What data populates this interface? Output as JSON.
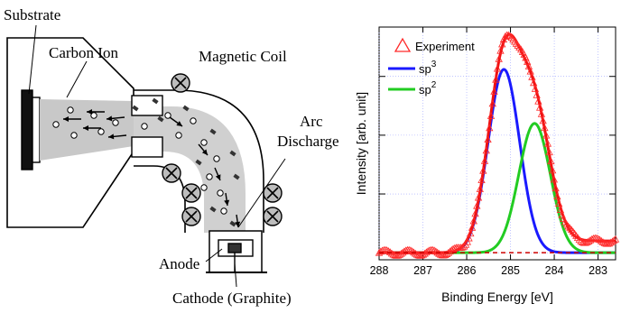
{
  "apparatus": {
    "labels": {
      "substrate": "Substrate",
      "carbon_ion": "Carbon Ion",
      "magnetic_coil": "Magnetic Coil",
      "arc_discharge_line1": "Arc",
      "arc_discharge_line2": "Discharge",
      "anode": "Anode",
      "cathode": "Cathode (Graphite)"
    }
  },
  "chart_data": {
    "type": "line",
    "xlabel": "Binding Energy [eV]",
    "ylabel": "Intensity [arb. unit]",
    "xlim": [
      288,
      282.6
    ],
    "x_reversed": true,
    "x_ticks": [
      "288",
      "287",
      "286",
      "285",
      "284",
      "283"
    ],
    "grid": true,
    "legend_position": "top-left",
    "legend": [
      {
        "label": "Experiment",
        "marker": "triangle-open",
        "color": "#ff2a2a"
      },
      {
        "label": "sp",
        "sup": "3",
        "color": "#1a1aff"
      },
      {
        "label": "sp",
        "sup": "2",
        "color": "#22cc22"
      }
    ],
    "series": [
      {
        "name": "sp3",
        "color": "#1a1aff",
        "type": "gaussian",
        "center": 285.15,
        "sigma": 0.36,
        "amplitude": 0.78
      },
      {
        "name": "sp2",
        "color": "#22cc22",
        "type": "gaussian",
        "center": 284.45,
        "sigma": 0.36,
        "amplitude": 0.55
      },
      {
        "name": "fit",
        "color": "#ee1111",
        "type": "sum"
      },
      {
        "name": "Experiment",
        "color": "#ff2a2a",
        "type": "markers"
      }
    ],
    "baseline": {
      "color": "#cc0000",
      "style": "dashed",
      "value": 0.0
    },
    "background_level": 0.05
  }
}
